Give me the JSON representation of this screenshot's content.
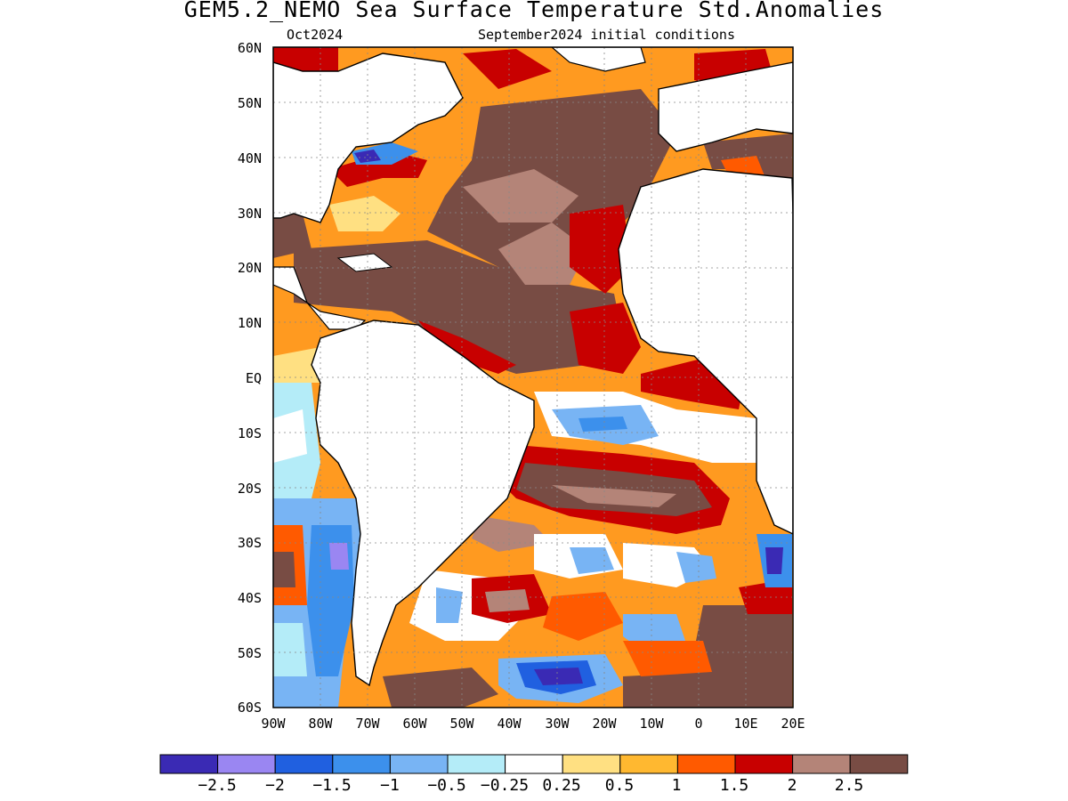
{
  "title": "GEM5.2_NEMO Sea Surface Temperature Std.Anomalies",
  "subtitle_left": "Oct2024",
  "subtitle_right": "September2024 initial conditions",
  "lat_labels": [
    "60N",
    "50N",
    "40N",
    "30N",
    "20N",
    "10N",
    "EQ",
    "10S",
    "20S",
    "30S",
    "40S",
    "50S",
    "60S"
  ],
  "lon_labels": [
    "90W",
    "80W",
    "70W",
    "60W",
    "50W",
    "40W",
    "30W",
    "20W",
    "10W",
    "0",
    "10E",
    "20E"
  ],
  "colorbar": {
    "colors": [
      "#3a2ab4",
      "#9a86f2",
      "#2060e0",
      "#3c90ec",
      "#78b4f4",
      "#b4ecf8",
      "#ffffff",
      "#ffe082",
      "#ffb830",
      "#ff5a00",
      "#c80000",
      "#b48478",
      "#784c44"
    ],
    "labels": [
      "−2.5",
      "−2",
      "−1.5",
      "−1",
      "−0.5",
      "−0.25",
      "0.25",
      "0.5",
      "1",
      "1.5",
      "2",
      "2.5"
    ]
  }
}
